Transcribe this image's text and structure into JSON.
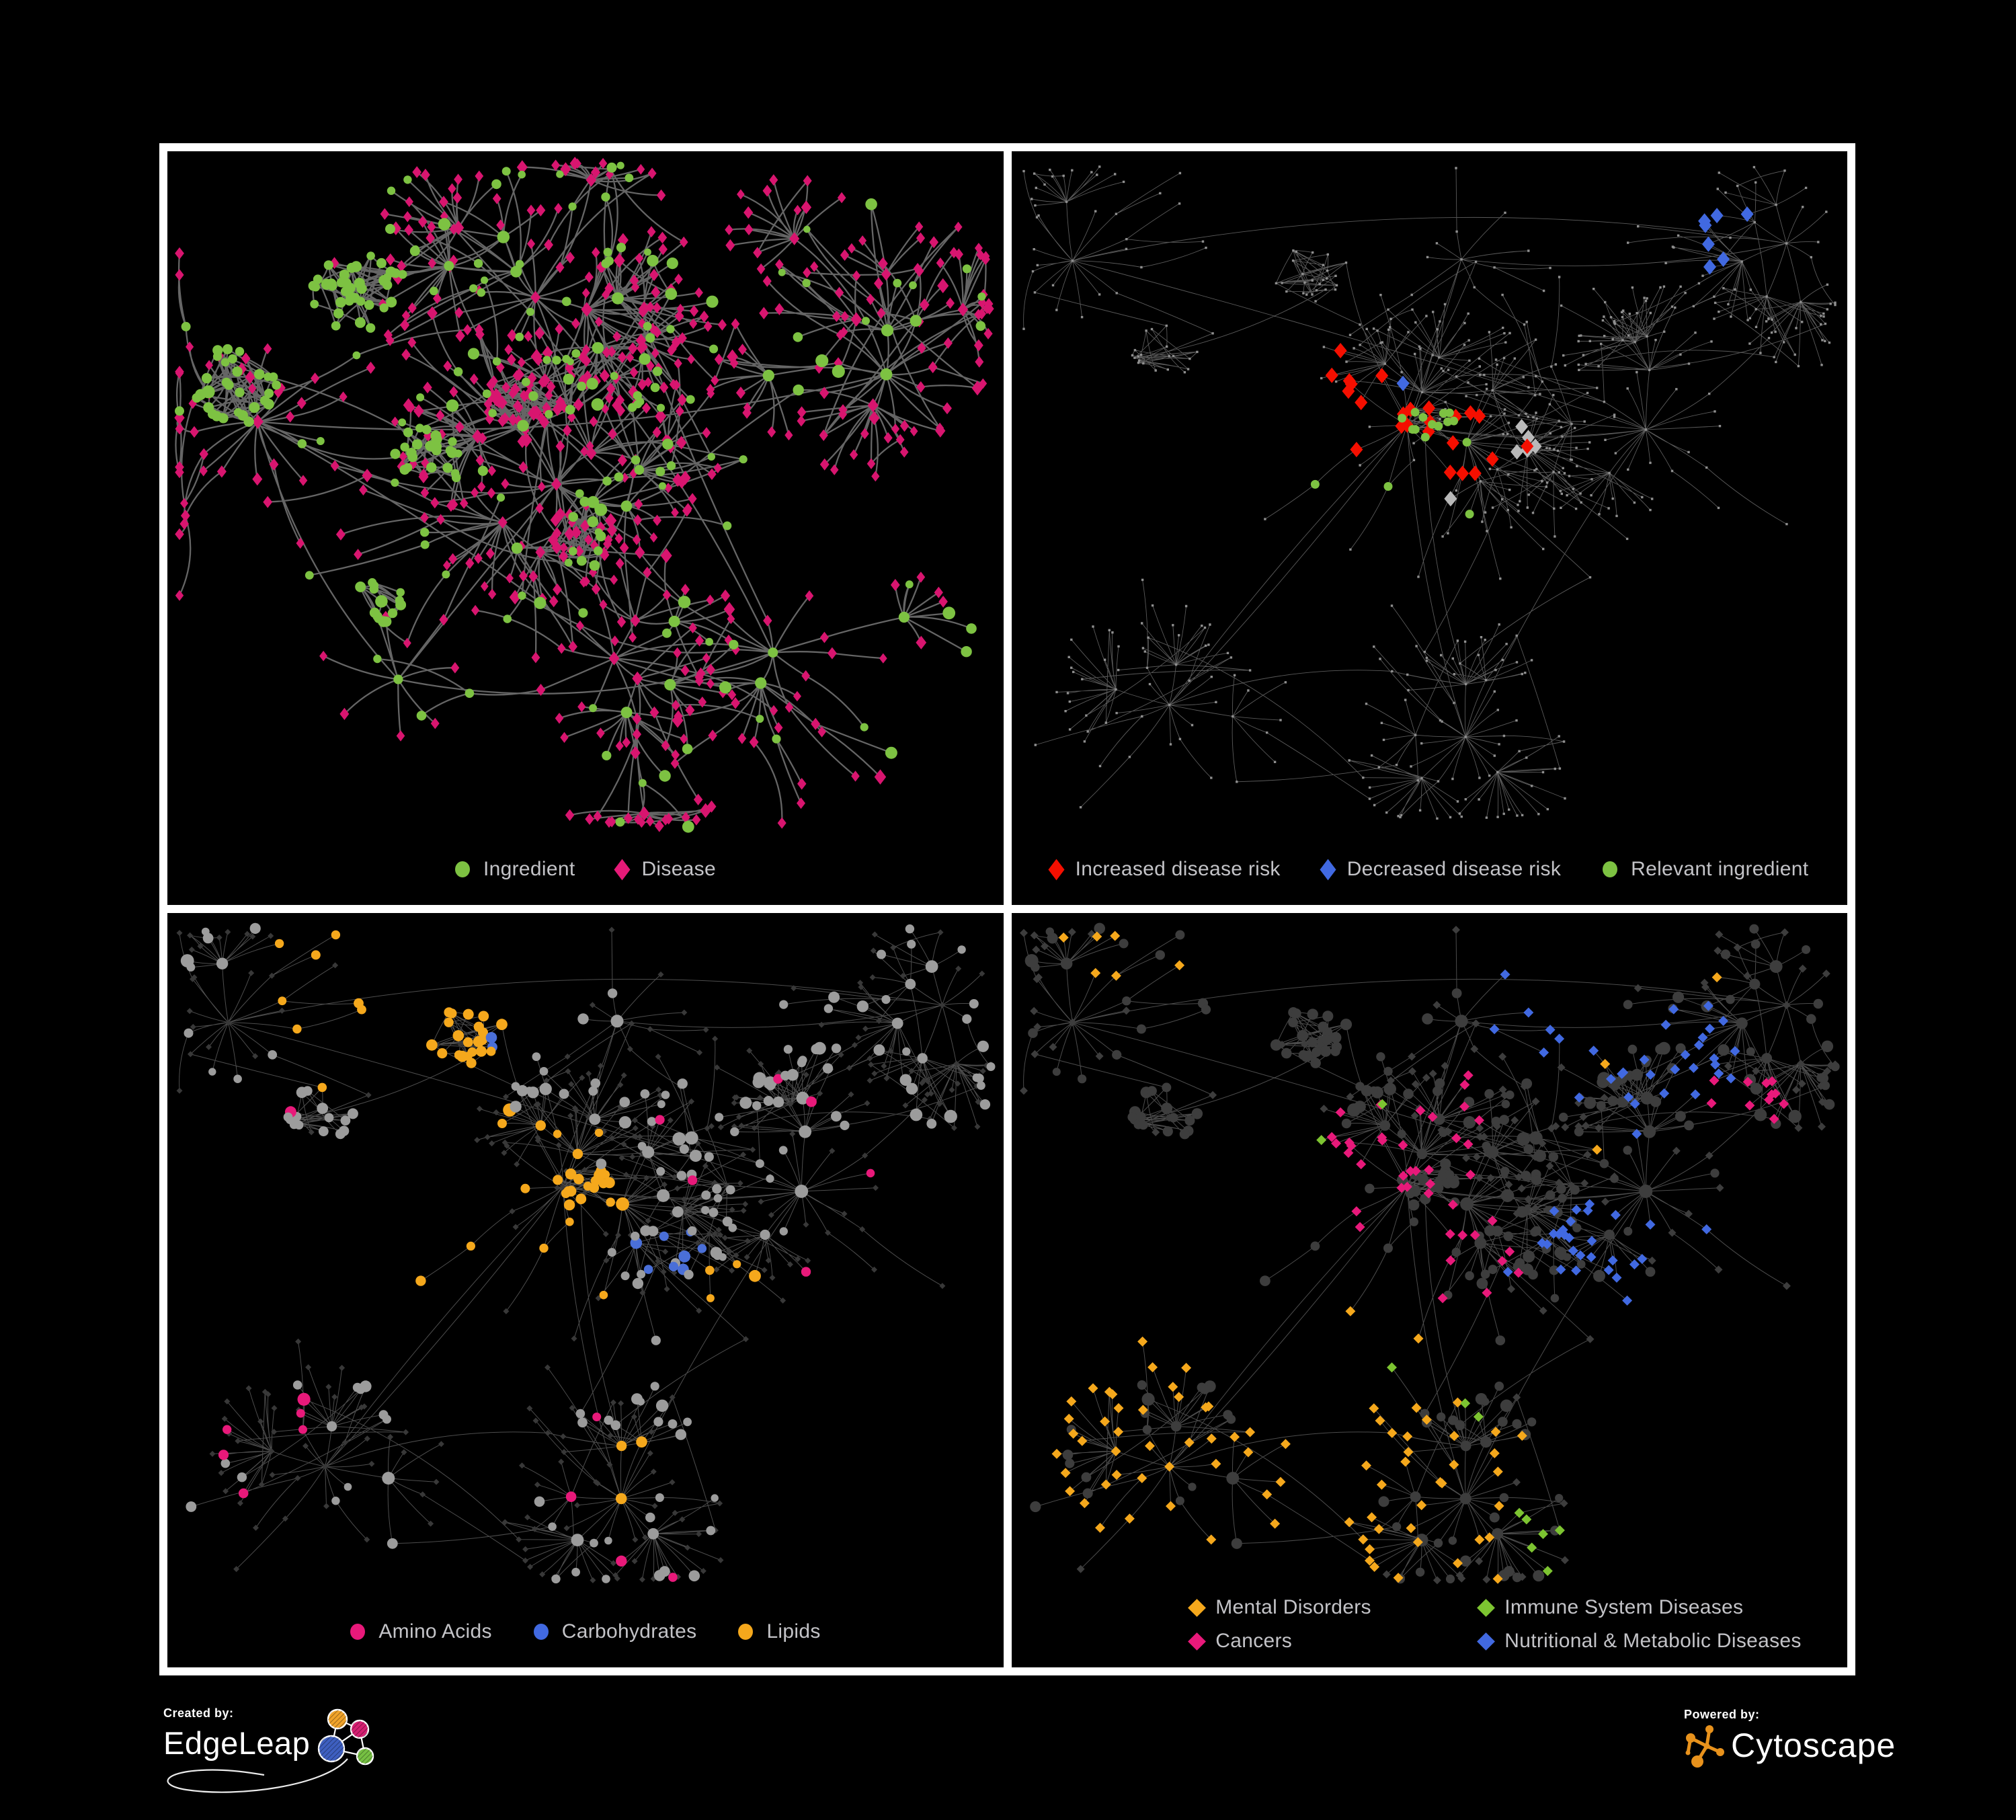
{
  "page": {
    "background": "#000000"
  },
  "panels": [
    {
      "name": "ingredient-disease",
      "legend": [
        {
          "label": "Ingredient",
          "shape": "circle",
          "color": "#7DC242"
        },
        {
          "label": "Disease",
          "shape": "diamond-tall",
          "color": "#E61A78"
        }
      ],
      "network": {
        "type": "network",
        "edge_color": "#6E6E6E",
        "groups": [
          {
            "name": "ingredient",
            "shape": "circle",
            "color": "#7DC242",
            "approx_count": 220
          },
          {
            "name": "disease",
            "shape": "diamond",
            "color": "#D8156F",
            "approx_count": 460
          }
        ]
      }
    },
    {
      "name": "disease-risk",
      "legend": [
        {
          "label": "Increased disease risk",
          "shape": "diamond-tall",
          "color": "#F50F00"
        },
        {
          "label": "Decreased disease risk",
          "shape": "diamond-tall",
          "color": "#4169E1"
        },
        {
          "label": "Relevant ingredient",
          "shape": "circle",
          "color": "#7DC242"
        }
      ],
      "network": {
        "type": "network",
        "edge_color": "#8A8A8A",
        "groups": [
          {
            "name": "node",
            "shape": "dot",
            "color": "#8F8F8F",
            "approx_count": 500
          },
          {
            "name": "increased-risk",
            "shape": "diamond",
            "color": "#F50F00",
            "approx_count": 23
          },
          {
            "name": "decreased-risk",
            "shape": "diamond",
            "color": "#4169E1",
            "approx_count": 8
          },
          {
            "name": "no-change-risk",
            "shape": "diamond",
            "color": "#B9B9B9",
            "approx_count": 6
          },
          {
            "name": "relevant-ingredient",
            "shape": "circle",
            "color": "#7DC242",
            "approx_count": 15
          }
        ]
      }
    },
    {
      "name": "nutrient-classes",
      "legend": [
        {
          "label": "Amino Acids",
          "shape": "circle",
          "color": "#E8197A"
        },
        {
          "label": "Carbohydrates",
          "shape": "circle",
          "color": "#4169E1"
        },
        {
          "label": "Lipids",
          "shape": "circle",
          "color": "#F5A81C"
        }
      ],
      "network": {
        "type": "network",
        "edge_color": "#9A9A9A",
        "groups": [
          {
            "name": "disease",
            "shape": "diamond",
            "color": "#383838",
            "approx_count": 380
          },
          {
            "name": "other-ingredient",
            "shape": "circle",
            "color": "#9C9C9C",
            "approx_count": 80
          },
          {
            "name": "amino-acids",
            "shape": "circle",
            "color": "#E8197A",
            "approx_count": 17
          },
          {
            "name": "carbohydrates",
            "shape": "circle",
            "color": "#4A6FD8",
            "approx_count": 10
          },
          {
            "name": "lipids",
            "shape": "circle",
            "color": "#F5A81C",
            "approx_count": 64
          }
        ]
      }
    },
    {
      "name": "disease-classes",
      "legend": [
        {
          "label": "Mental Disorders",
          "shape": "diamond",
          "color": "#F5A81C"
        },
        {
          "label": "Immune System Diseases",
          "shape": "diamond",
          "color": "#7DC431"
        },
        {
          "label": "Cancers",
          "shape": "diamond",
          "color": "#E8197A"
        },
        {
          "label": "Nutritional & Metabolic Diseases",
          "shape": "diamond",
          "color": "#4169E1"
        }
      ],
      "network": {
        "type": "network",
        "edge_color": "#8A8A8A",
        "groups": [
          {
            "name": "other-disease",
            "shape": "diamond",
            "color": "#3D3D3D",
            "approx_count": 180
          },
          {
            "name": "ingredient",
            "shape": "circle",
            "color": "#3D3D3D",
            "approx_count": 160
          },
          {
            "name": "mental-disorders",
            "shape": "diamond",
            "color": "#F5A81C",
            "approx_count": 85
          },
          {
            "name": "immune-system-diseases",
            "shape": "diamond",
            "color": "#7DC431",
            "approx_count": 10
          },
          {
            "name": "cancers",
            "shape": "diamond",
            "color": "#E8197A",
            "approx_count": 50
          },
          {
            "name": "nutritional-metabolic-diseases",
            "shape": "diamond",
            "color": "#4169E1",
            "approx_count": 60
          }
        ]
      }
    }
  ],
  "footer": {
    "created_by": "Created by:",
    "edgeleap": "EdgeLeap",
    "powered_by": "Powered by:",
    "cytoscape": "Cytoscape",
    "edgeleap_colors": [
      "#F0A32A",
      "#D61F72",
      "#3E5FC0",
      "#76C043"
    ],
    "cytoscape_color": "#E8921C"
  }
}
